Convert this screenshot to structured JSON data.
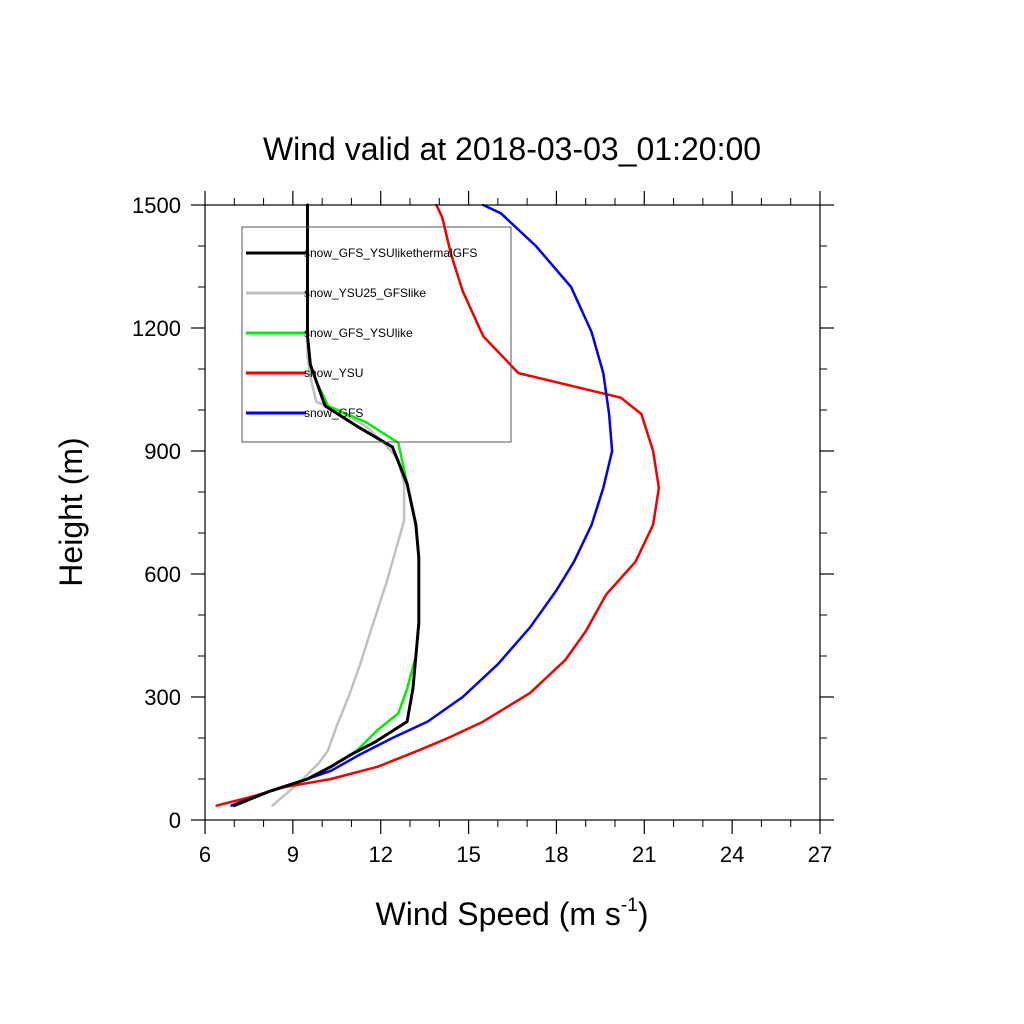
{
  "chart_data": {
    "type": "line",
    "title": "Wind valid at 2018-03-03_01:20:00",
    "xlabel": "Wind Speed (m s",
    "xlabel_sup": "-1",
    "xlabel_end": ")",
    "ylabel": "Height (m)",
    "xlim": [
      6,
      27
    ],
    "ylim": [
      0,
      1500
    ],
    "xticks": [
      6,
      9,
      12,
      15,
      18,
      21,
      24,
      27
    ],
    "xtick_labels": [
      "6",
      "9",
      "12",
      "15",
      "18",
      "21",
      "24",
      "27"
    ],
    "yticks": [
      0,
      300,
      600,
      900,
      1200,
      1500
    ],
    "ytick_labels": [
      "0",
      "300",
      "600",
      "900",
      "1200",
      "1500"
    ],
    "grid": false,
    "legend_position": "top-left",
    "series": [
      {
        "name": "snow_GFS_YSUlikethermalGFS",
        "color": "#000000",
        "x": [
          7.0,
          8.2,
          9.5,
          10.3,
          11.0,
          11.8,
          12.9,
          13.1,
          13.2,
          13.3,
          13.3,
          13.3,
          13.2,
          12.9,
          12.4,
          11.2,
          10.1,
          9.8,
          9.6,
          9.5,
          9.5,
          9.5,
          9.5,
          9.5
        ],
        "y": [
          35,
          70,
          100,
          130,
          160,
          190,
          240,
          320,
          400,
          480,
          560,
          640,
          720,
          820,
          910,
          960,
          1010,
          1070,
          1110,
          1180,
          1260,
          1330,
          1420,
          1500
        ]
      },
      {
        "name": "snow_YSU25_GFSlike",
        "color": "#c0c0c0",
        "x": [
          8.3,
          9.2,
          9.9,
          10.2,
          10.5,
          10.9,
          11.3,
          11.7,
          12.2,
          12.8,
          12.8,
          12.6,
          12.1,
          11.5,
          10.5,
          9.8,
          9.6,
          9.5,
          9.5,
          9.5,
          9.5,
          9.5
        ],
        "y": [
          35,
          90,
          140,
          170,
          230,
          300,
          380,
          470,
          580,
          730,
          820,
          880,
          920,
          960,
          1000,
          1020,
          1080,
          1130,
          1200,
          1280,
          1400,
          1500
        ]
      },
      {
        "name": "snow_GFS_YSUlike",
        "color": "#00ee00",
        "x": [
          7.0,
          8.2,
          9.5,
          10.3,
          11.2,
          11.9,
          12.6,
          12.9,
          13.2,
          13.3,
          13.3,
          13.3,
          13.2,
          12.9,
          12.6,
          11.5,
          10.2,
          9.8,
          9.6,
          9.5,
          9.5,
          9.5,
          9.5,
          9.5
        ],
        "y": [
          35,
          70,
          100,
          130,
          170,
          220,
          260,
          320,
          400,
          480,
          560,
          640,
          720,
          820,
          920,
          970,
          1010,
          1070,
          1110,
          1180,
          1260,
          1330,
          1420,
          1500
        ]
      },
      {
        "name": "snow_YSU",
        "color": "#ee0000",
        "x": [
          6.4,
          7.5,
          8.7,
          10.3,
          11.9,
          13.3,
          14.3,
          15.5,
          17.1,
          18.3,
          19.0,
          19.7,
          20.7,
          21.3,
          21.5,
          21.3,
          20.9,
          20.2,
          16.7,
          15.5,
          14.8,
          14.4,
          14.1,
          13.9
        ],
        "y": [
          35,
          55,
          80,
          100,
          130,
          170,
          200,
          240,
          310,
          390,
          460,
          550,
          630,
          720,
          810,
          900,
          990,
          1030,
          1090,
          1180,
          1290,
          1380,
          1470,
          1500
        ]
      },
      {
        "name": "snow_GFS",
        "color": "#0000ee",
        "x": [
          6.9,
          8.0,
          9.3,
          10.3,
          11.3,
          12.4,
          13.6,
          14.8,
          16.0,
          17.1,
          18.0,
          18.6,
          19.2,
          19.6,
          19.9,
          19.8,
          19.6,
          19.2,
          18.5,
          17.3,
          16.1,
          15.5
        ],
        "y": [
          35,
          65,
          95,
          120,
          160,
          200,
          240,
          300,
          380,
          470,
          560,
          630,
          720,
          810,
          900,
          990,
          1090,
          1190,
          1300,
          1400,
          1480,
          1500
        ]
      }
    ]
  }
}
